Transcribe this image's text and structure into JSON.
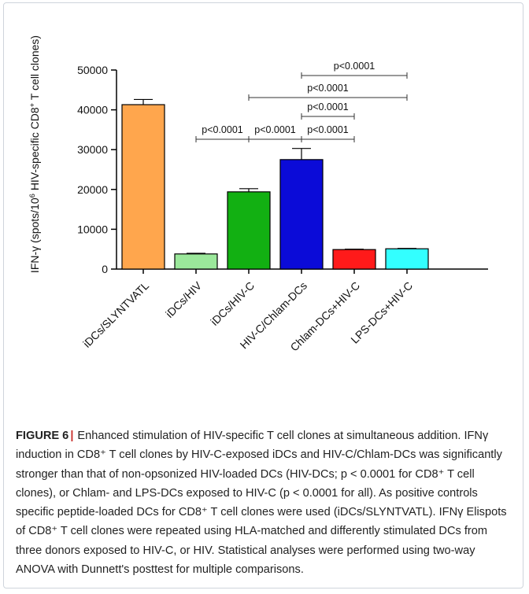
{
  "chart_data": {
    "type": "bar",
    "ylabel_main": "IFN-γ (spots/10",
    "ylabel_sup1": "6",
    "ylabel_mid": " HIV-specific CD8",
    "ylabel_sup2": "+",
    "ylabel_end": " T cell clones)",
    "ylim": [
      0,
      50000
    ],
    "yticks": [
      0,
      10000,
      20000,
      30000,
      40000,
      50000
    ],
    "categories": [
      "iDCs/SLYNTVATL",
      "iDCs/HIV",
      "iDCs/HIV-C",
      "HIV-C/Chlam-DCs",
      "Chlam-DCs+HIV-C",
      "LPS-DCs+HIV-C"
    ],
    "values": [
      41300,
      3800,
      19400,
      27500,
      4900,
      5100
    ],
    "errors": [
      1300,
      150,
      800,
      2800,
      100,
      100
    ],
    "colors": [
      "#ffa64d",
      "#9be89b",
      "#12b012",
      "#0b0bd8",
      "#ff1a1a",
      "#33ffff"
    ],
    "comparisons": [
      {
        "from": 2,
        "to": 3,
        "label": "p<0.0001"
      },
      {
        "from": 3,
        "to": 4,
        "label": "p<0.0001"
      },
      {
        "from": 1,
        "to": 2,
        "label": "p<0.0001"
      },
      {
        "from": 3,
        "to": 4,
        "label": "p<0.0001"
      },
      {
        "from": 2,
        "to": 5,
        "label": "p<0.0001"
      },
      {
        "from": 3,
        "to": 5,
        "label": "p<0.0001"
      }
    ]
  },
  "caption": {
    "figure_label": "FIGURE 6",
    "separator": "|",
    "text": "Enhanced stimulation of HIV-specific T cell clones at simultaneous addition. IFNγ induction in CD8⁺ T cell clones by HIV-C-exposed iDCs and HIV-C/Chlam-DCs was significantly stronger than that of non-opsonized HIV-loaded DCs (HIV-DCs; p < 0.0001 for CD8⁺ T cell clones), or Chlam- and LPS-DCs exposed to HIV-C (p < 0.0001 for all). As positive controls specific peptide-loaded DCs for CD8⁺ T cell clones were used (iDCs/SLYNTVATL). IFNγ Elispots of CD8⁺ T cell clones were repeated using HLA-matched and differently stimulated DCs from three donors exposed to HIV-C, or HIV. Statistical analyses were performed using two-way ANOVA with Dunnett's posttest for multiple comparisons."
  }
}
